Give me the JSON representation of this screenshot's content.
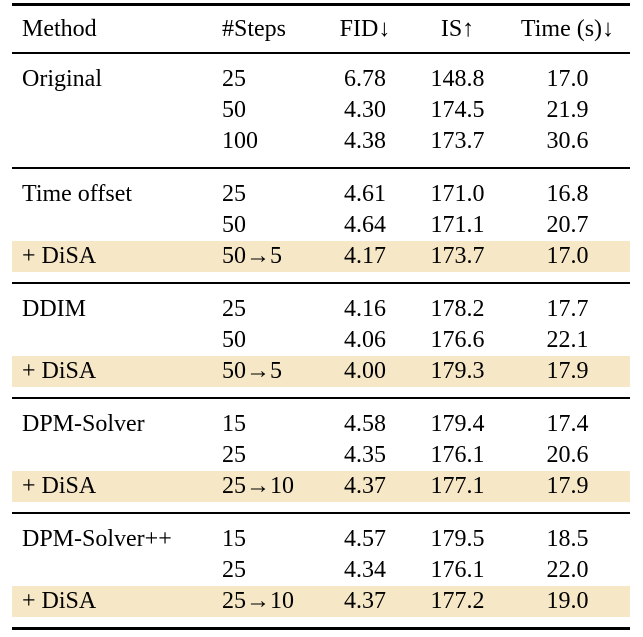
{
  "table": {
    "highlight_color": "#f6e7c6",
    "columns": {
      "method": "Method",
      "steps": "#Steps",
      "fid": "FID↓",
      "is": "IS↑",
      "time": "Time (s)↓"
    },
    "groups": [
      {
        "rows": [
          {
            "method": "Original",
            "steps": "25",
            "fid": "6.78",
            "is": "148.8",
            "time": "17.0",
            "highlight": false
          },
          {
            "method": "",
            "steps": "50",
            "fid": "4.30",
            "is": "174.5",
            "time": "21.9",
            "highlight": false
          },
          {
            "method": "",
            "steps": "100",
            "fid": "4.38",
            "is": "173.7",
            "time": "30.6",
            "highlight": false
          }
        ]
      },
      {
        "rows": [
          {
            "method": "Time offset",
            "steps": "25",
            "fid": "4.61",
            "is": "171.0",
            "time": "16.8",
            "highlight": false
          },
          {
            "method": "",
            "steps": "50",
            "fid": "4.64",
            "is": "171.1",
            "time": "20.7",
            "highlight": false
          },
          {
            "method": "+ DiSA",
            "steps": "50→5",
            "fid": "4.17",
            "is": "173.7",
            "time": "17.0",
            "highlight": true
          }
        ]
      },
      {
        "rows": [
          {
            "method": "DDIM",
            "steps": "25",
            "fid": "4.16",
            "is": "178.2",
            "time": "17.7",
            "highlight": false
          },
          {
            "method": "",
            "steps": "50",
            "fid": "4.06",
            "is": "176.6",
            "time": "22.1",
            "highlight": false
          },
          {
            "method": "+ DiSA",
            "steps": "50→5",
            "fid": "4.00",
            "is": "179.3",
            "time": "17.9",
            "highlight": true
          }
        ]
      },
      {
        "rows": [
          {
            "method": "DPM-Solver",
            "steps": "15",
            "fid": "4.58",
            "is": "179.4",
            "time": "17.4",
            "highlight": false
          },
          {
            "method": "",
            "steps": "25",
            "fid": "4.35",
            "is": "176.1",
            "time": "20.6",
            "highlight": false
          },
          {
            "method": "+ DiSA",
            "steps": "25→10",
            "fid": "4.37",
            "is": "177.1",
            "time": "17.9",
            "highlight": true
          }
        ]
      },
      {
        "rows": [
          {
            "method": "DPM-Solver++",
            "steps": "15",
            "fid": "4.57",
            "is": "179.5",
            "time": "18.5",
            "highlight": false
          },
          {
            "method": "",
            "steps": "25",
            "fid": "4.34",
            "is": "176.1",
            "time": "22.0",
            "highlight": false
          },
          {
            "method": "+ DiSA",
            "steps": "25→10",
            "fid": "4.37",
            "is": "177.2",
            "time": "19.0",
            "highlight": true
          }
        ]
      }
    ]
  }
}
